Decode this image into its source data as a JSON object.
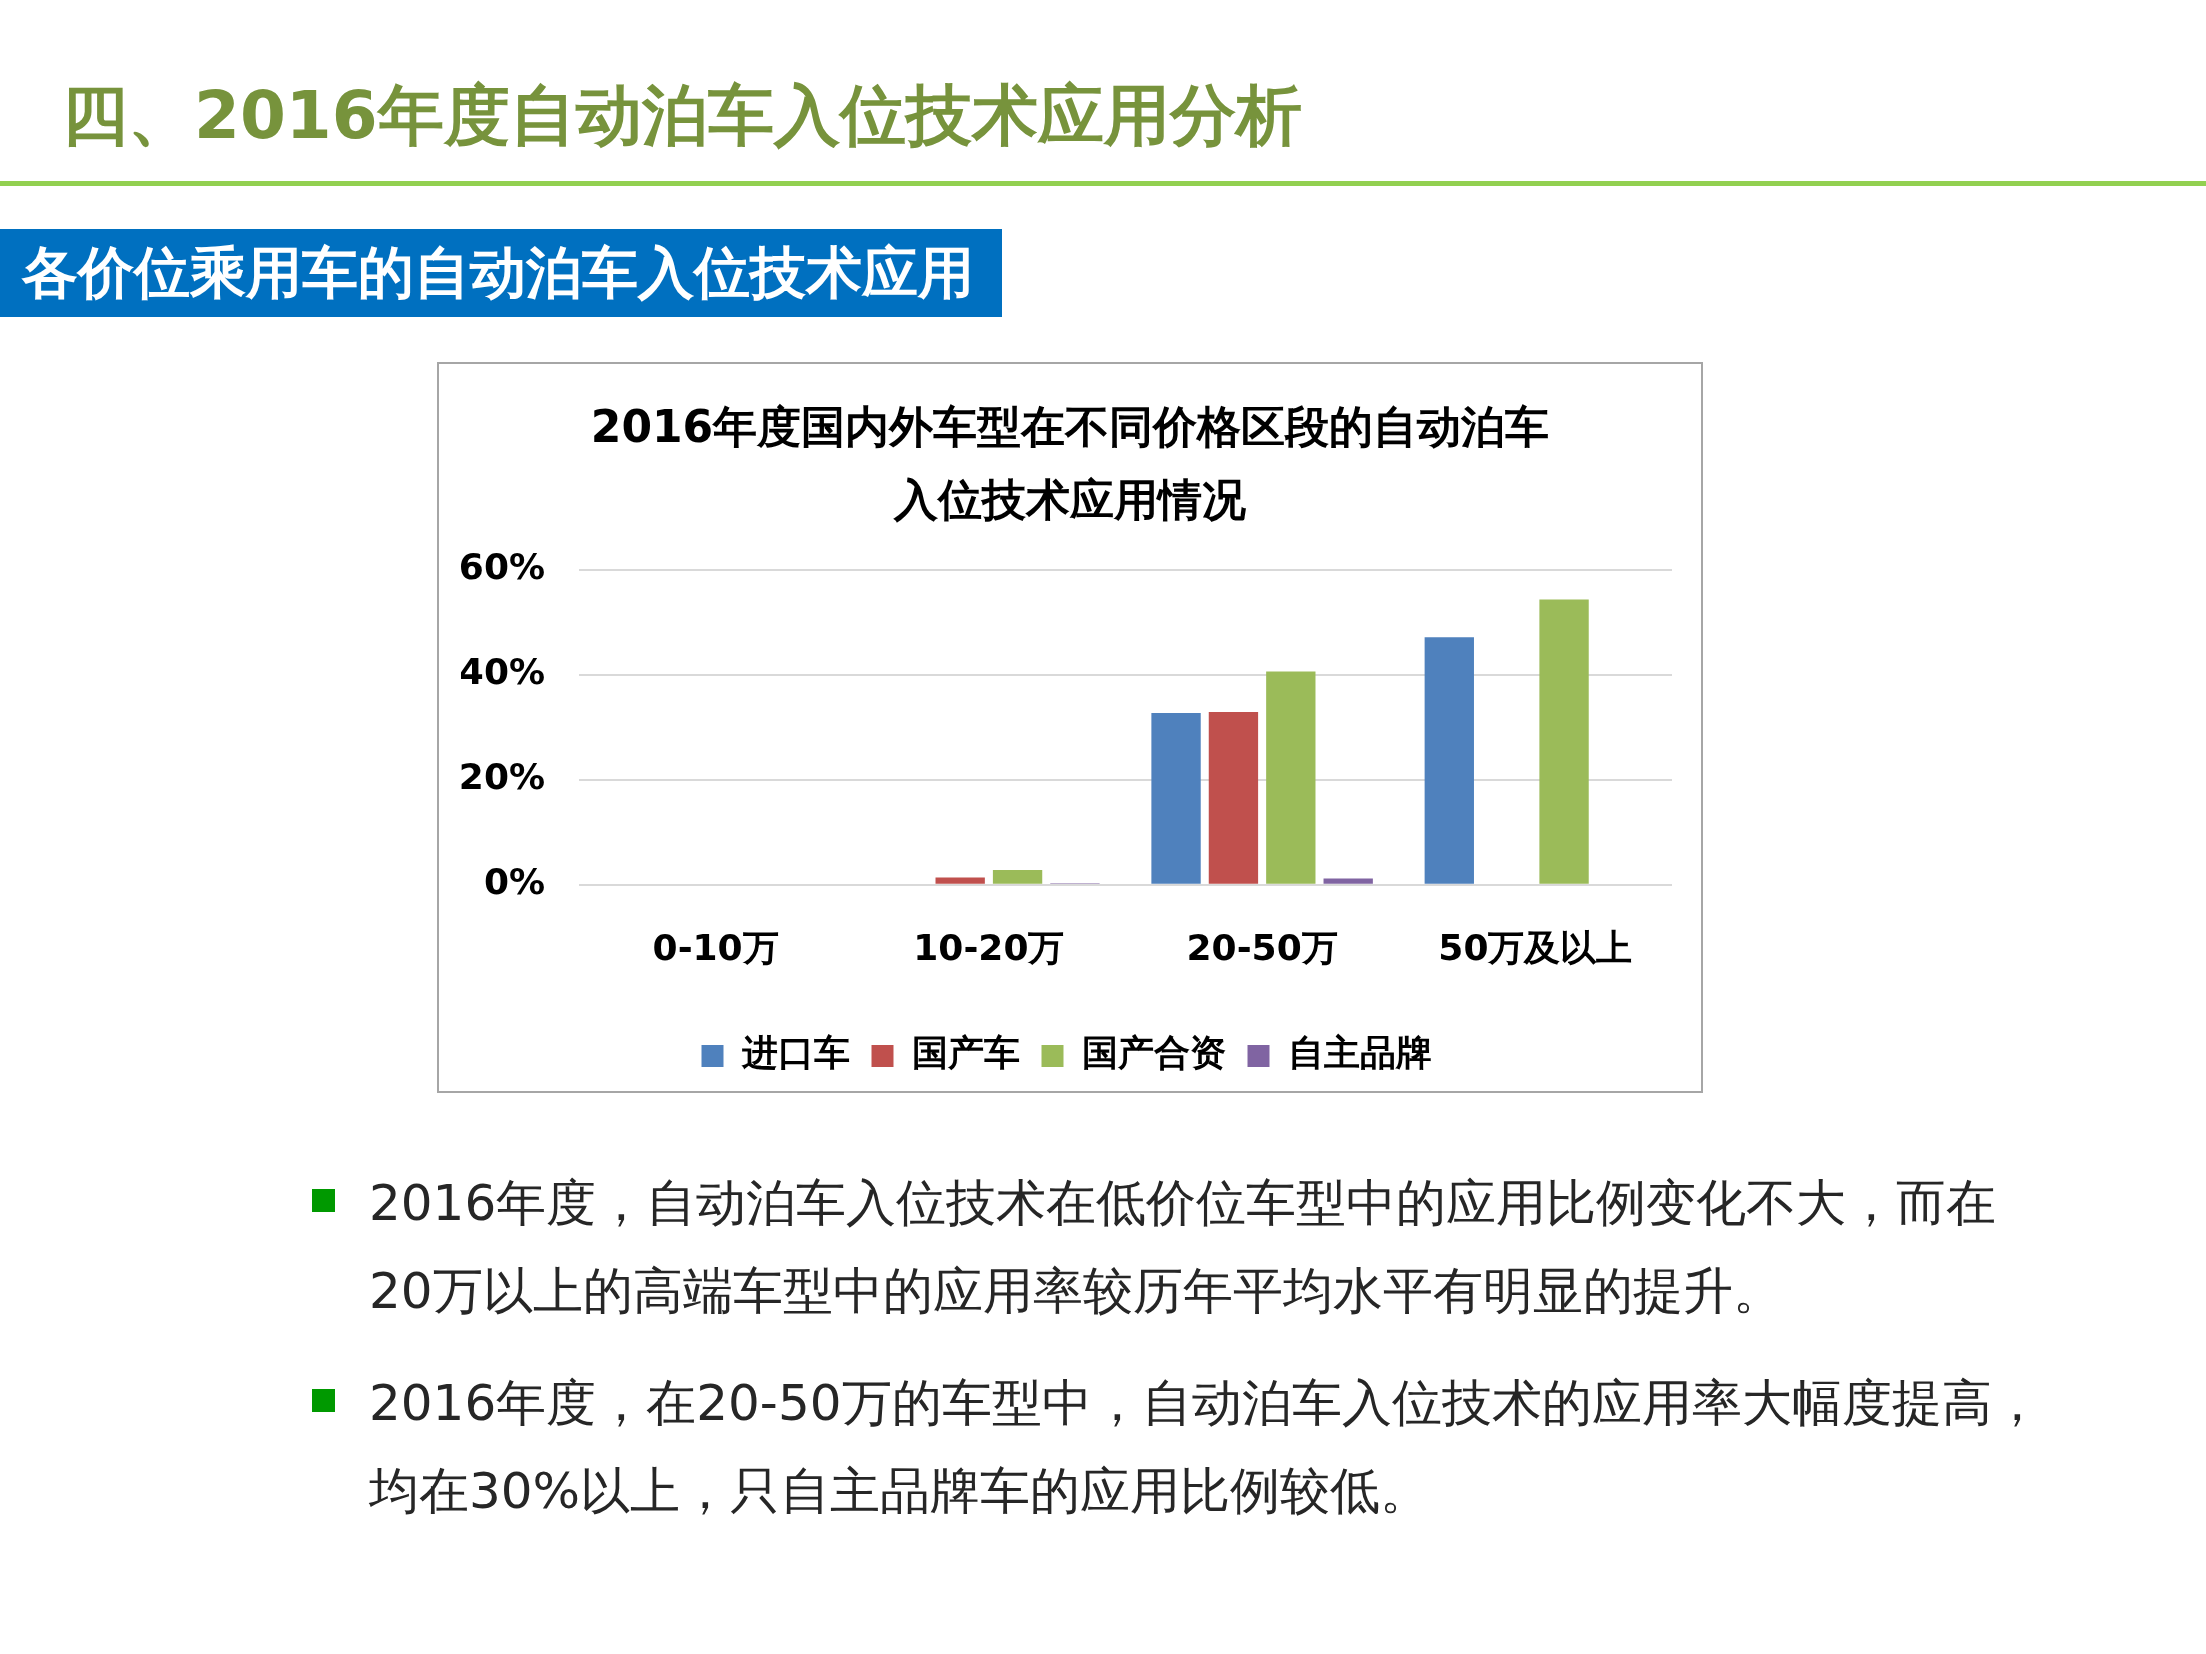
{
  "chart_data": {
    "type": "bar",
    "title": "2016年度国内外车型在不同价格区段的自动泊车入位技术应用情况",
    "subtitle": "各价位乘用车的自动泊车入位技术应用",
    "annotations": [
      "四、2016年度自动泊车入位技术应用分析",
      "2016年度，自动泊车入位技术在低价位车型中的应用比例变化不大，而在20万以上的高端车型中的应用率较历年平均水平有明显的提升。",
      "2016年度，在20-50万的车型中，自动泊车入位技术的应用率大幅度提高，均在30%以上，只自主品牌车的应用比例较低。"
    ],
    "categories": [
      "0-10万",
      "10-20万",
      "20-50万",
      "50万及以上"
    ],
    "series": [
      {
        "name": "进口车",
        "color": "#4f81bd",
        "values": [
          0,
          0,
          32.7,
          47.1
        ]
      },
      {
        "name": "国产车",
        "color": "#c0504d",
        "values": [
          0,
          1.4,
          32.9,
          0
        ]
      },
      {
        "name": "国产合资",
        "color": "#9bbb59",
        "values": [
          0,
          2.8,
          40.6,
          54.3
        ]
      },
      {
        "name": "自主品牌",
        "color": "#8064a2",
        "values": [
          0,
          0.3,
          1.2,
          0
        ]
      }
    ],
    "ylim": [
      0,
      60
    ],
    "yticks": [
      {
        "value": 0,
        "label": "0%"
      },
      {
        "value": 20,
        "label": "20%"
      },
      {
        "value": 40,
        "label": "40%"
      },
      {
        "value": 60,
        "label": "60%"
      }
    ],
    "grid": "y",
    "legend": "bottom"
  }
}
